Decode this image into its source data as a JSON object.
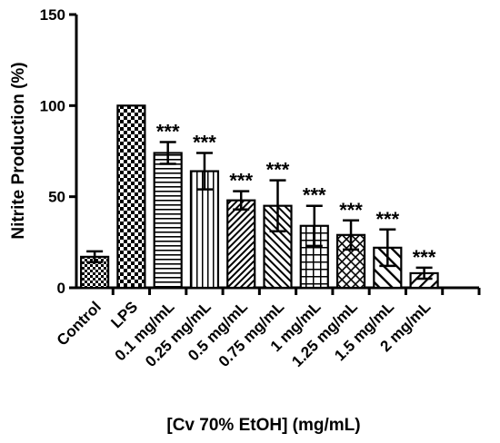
{
  "chart_data": {
    "type": "bar",
    "ylabel": "Nitrite Production (%)",
    "xlabel": "[Cv 70% EtOH] (mg/mL)",
    "ylim": [
      0,
      150
    ],
    "yticks": [
      0,
      50,
      100,
      150
    ],
    "categories": [
      "Control",
      "LPS",
      "0.1 mg/mL",
      "0.25 mg/mL",
      "0.5 mg/mL",
      "0.75 mg/mL",
      "1 mg/mL",
      "1.25 mg/mL",
      "1.5 mg/mL",
      "2 mg/mL"
    ],
    "values": [
      17,
      100,
      74,
      64,
      48,
      45,
      34,
      29,
      22,
      8
    ],
    "errors": [
      3,
      0,
      6,
      10,
      5,
      14,
      11,
      8,
      10,
      3
    ],
    "significance": [
      "",
      "",
      "***",
      "***",
      "***",
      "***",
      "***",
      "***",
      "***",
      "***"
    ],
    "patterns": [
      "small-check",
      "checker",
      "horizontal",
      "vertical",
      "diag-fwd-dense",
      "diag-back",
      "grid",
      "diag-cross",
      "diag-back-wide",
      "diag-fwd"
    ],
    "grid": false,
    "legend": "none"
  }
}
